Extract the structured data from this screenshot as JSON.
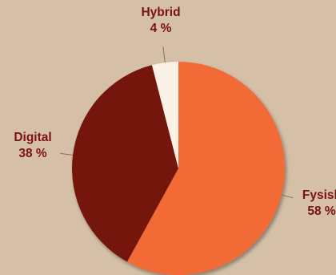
{
  "chart_data": {
    "type": "pie",
    "title": "",
    "start": "top",
    "direction": "clockwise",
    "slices": [
      {
        "label": "Fysisk",
        "value": 58,
        "value_label": "58 %",
        "color": "#f26b36"
      },
      {
        "label": "Digital",
        "value": 38,
        "value_label": "38 %",
        "color": "#751211"
      },
      {
        "label": "Hybrid",
        "value": 4,
        "value_label": "4 %",
        "color": "#fbf1e7"
      }
    ],
    "background_color": "#d5bfa7",
    "label_color": "#7a1212",
    "leader_line_color": "#8a6e5c"
  }
}
